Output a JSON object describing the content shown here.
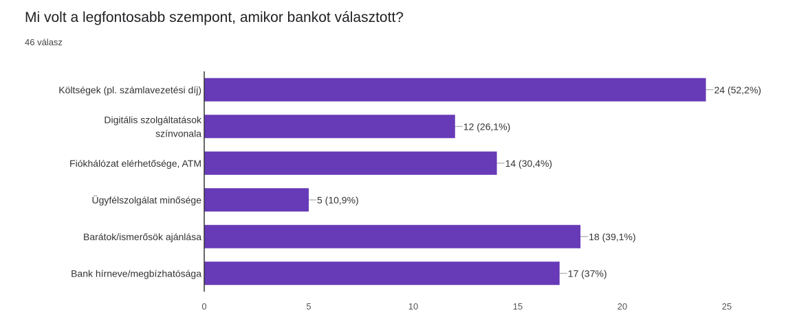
{
  "question": {
    "title": "Mi volt a legfontosabb szempont, amikor bankot választott?",
    "response_count": "46 válasz"
  },
  "colors": {
    "bar": "#673ab7",
    "axis": "#333333",
    "leader": "#999999",
    "label": "#333333"
  },
  "chart_data": {
    "type": "bar",
    "orientation": "horizontal",
    "title": "Mi volt a legfontosabb szempont, amikor bankot választott?",
    "categories": [
      [
        "Költségek (pl. számlavezetési díj)"
      ],
      [
        "Digitális szolgáltatások",
        "színvonala"
      ],
      [
        "Fiókhálózat elérhetősége, ATM"
      ],
      [
        "Ügyfélszolgálat minősége"
      ],
      [
        "Barátok/ismerősök ajánlása"
      ],
      [
        "Bank hírneve/megbízhatósága"
      ]
    ],
    "values": [
      24,
      12,
      14,
      5,
      18,
      17
    ],
    "data_labels": [
      "24 (52,2%)",
      "12 (26,1%)",
      "14 (30,4%)",
      "5 (10,9%)",
      "18 (39,1%)",
      "17 (37%)"
    ],
    "xlim": [
      0,
      25
    ],
    "xticks": [
      0,
      5,
      10,
      15,
      20,
      25
    ],
    "grid": false
  }
}
